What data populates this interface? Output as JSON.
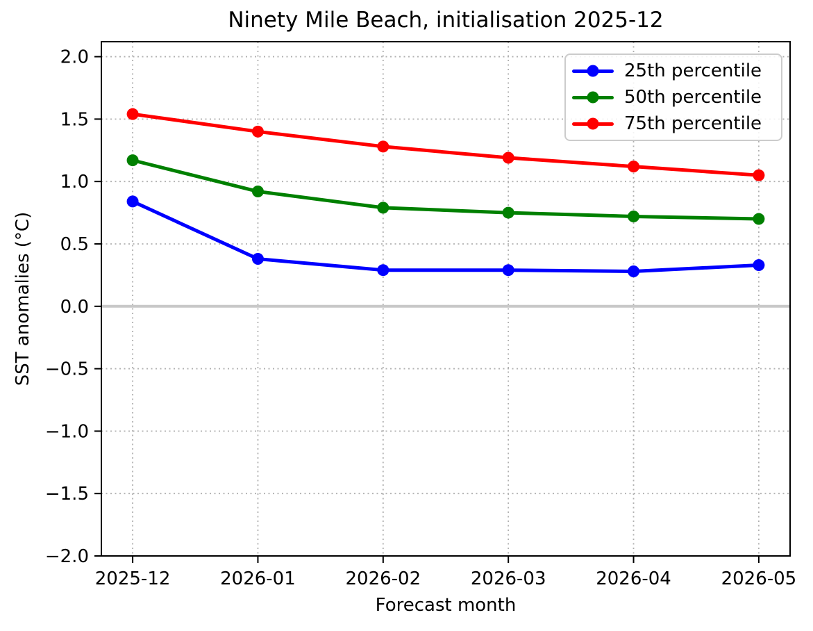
{
  "chart_data": {
    "type": "line",
    "title": "Ninety Mile Beach, initialisation 2025-12",
    "xlabel": "Forecast month",
    "ylabel": "SST anomalies (°C)",
    "categories": [
      "2025-12",
      "2026-01",
      "2026-02",
      "2026-03",
      "2026-04",
      "2026-05"
    ],
    "series": [
      {
        "name": "25th percentile",
        "color": "#0000ff",
        "values": [
          0.84,
          0.38,
          0.29,
          0.29,
          0.28,
          0.33
        ]
      },
      {
        "name": "50th percentile",
        "color": "#008000",
        "values": [
          1.17,
          0.92,
          0.79,
          0.75,
          0.72,
          0.7
        ]
      },
      {
        "name": "75th percentile",
        "color": "#ff0000",
        "values": [
          1.54,
          1.4,
          1.28,
          1.19,
          1.12,
          1.05
        ]
      }
    ],
    "ylim": [
      -2.0,
      2.12
    ],
    "x_margin": 0.25,
    "yticks": [
      {
        "value": 2.0,
        "label": "2.0"
      },
      {
        "value": 1.5,
        "label": "1.5"
      },
      {
        "value": 1.0,
        "label": "1.0"
      },
      {
        "value": 0.5,
        "label": "0.5"
      },
      {
        "value": 0.0,
        "label": "0.0"
      },
      {
        "value": -0.5,
        "label": "−0.5"
      },
      {
        "value": -1.0,
        "label": "−1.0"
      },
      {
        "value": -1.5,
        "label": "−1.5"
      },
      {
        "value": -2.0,
        "label": "−2.0"
      }
    ],
    "grid": {
      "show": true,
      "line_style": "dotted",
      "color": "#b0b0b0"
    },
    "zero_line": {
      "y": 0.0,
      "color": "#c8c8c8"
    },
    "legend": {
      "position": "upper right"
    },
    "axis_color": "#000000",
    "background": "#ffffff"
  }
}
